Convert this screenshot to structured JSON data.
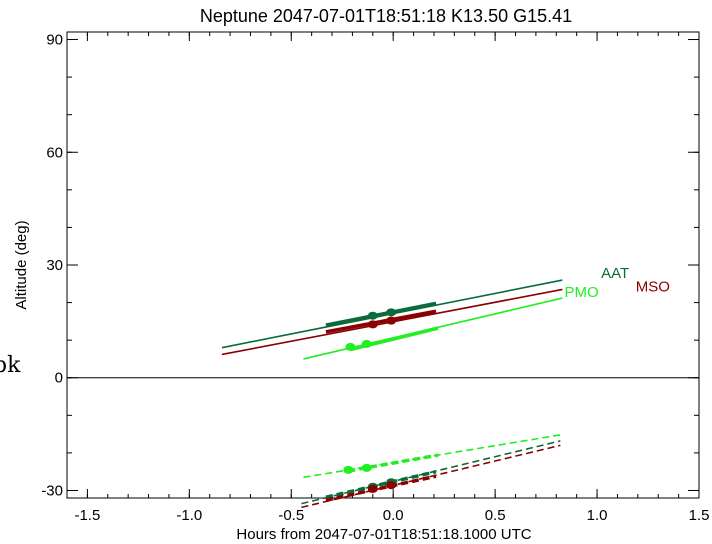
{
  "chart_data": {
    "type": "line",
    "title": "Neptune 2047-07-01T18:51:18  K13.50  G15.41",
    "xlabel": "Hours from 2047-07-01T18:51:18.1000 UTC",
    "ylabel": "Altitude (deg)",
    "xlim": [
      -1.6,
      1.5
    ],
    "ylim": [
      -32,
      92
    ],
    "xticks": [
      -1.5,
      -1.0,
      -0.5,
      0.0,
      0.5,
      1.0,
      1.5
    ],
    "xtick_labels": [
      "-1.5",
      "-1.0",
      "-0.5",
      "0.0",
      "0.5",
      "1.0",
      "1.5"
    ],
    "yticks": [
      -30,
      0,
      30,
      60,
      90
    ],
    "ytick_labels": [
      "-30",
      "0",
      "30",
      "60",
      "90"
    ],
    "zero_line": true,
    "grid": false,
    "edge_text": "pk",
    "series": [
      {
        "name": "AAT",
        "color": "#0b6b3a",
        "label_at": [
          1.02,
          26.5
        ],
        "altitude": {
          "x": [
            -0.84,
            0.83
          ],
          "y": [
            8.0,
            26.0
          ]
        },
        "thick": {
          "x": [
            -0.33,
            0.21
          ],
          "y": [
            14.0,
            19.8
          ]
        },
        "points": {
          "x": [
            -0.1,
            -0.01
          ],
          "y": [
            16.5,
            17.4
          ]
        },
        "below": {
          "x": [
            -0.45,
            0.82
          ],
          "y": [
            -33.5,
            -16.8
          ]
        },
        "below_thick": {
          "x": [
            -0.33,
            0.21
          ],
          "y": [
            -31.8,
            -25.0
          ]
        },
        "below_points": {
          "x": [
            -0.1,
            -0.01
          ],
          "y": [
            -29.0,
            -27.8
          ]
        }
      },
      {
        "name": "MSO",
        "color": "#8b0000",
        "label_at": [
          1.19,
          23.0
        ],
        "altitude": {
          "x": [
            -0.84,
            0.83
          ],
          "y": [
            6.2,
            23.5
          ]
        },
        "thick": {
          "x": [
            -0.33,
            0.21
          ],
          "y": [
            12.2,
            17.7
          ]
        },
        "points": {
          "x": [
            -0.1,
            -0.01
          ],
          "y": [
            14.2,
            15.2
          ]
        },
        "below": {
          "x": [
            -0.45,
            0.82
          ],
          "y": [
            -34.5,
            -18.0
          ]
        },
        "below_thick": {
          "x": [
            -0.33,
            0.21
          ],
          "y": [
            -32.6,
            -26.2
          ]
        },
        "below_points": {
          "x": [
            -0.1,
            -0.01
          ],
          "y": [
            -29.6,
            -28.6
          ]
        }
      },
      {
        "name": "PMO",
        "color": "#22ee22",
        "label_at": [
          0.84,
          21.5
        ],
        "altitude": {
          "x": [
            -0.44,
            0.83
          ],
          "y": [
            5.0,
            21.2
          ]
        },
        "thick": {
          "x": [
            -0.21,
            0.22
          ],
          "y": [
            7.5,
            13.2
          ]
        },
        "points": {
          "x": [
            -0.21,
            -0.13
          ],
          "y": [
            8.2,
            9.0
          ]
        },
        "below": {
          "x": [
            -0.44,
            0.82
          ],
          "y": [
            -26.5,
            -15.2
          ]
        },
        "below_thick": {
          "x": [
            -0.22,
            0.22
          ],
          "y": [
            -24.8,
            -20.6
          ]
        },
        "below_points": {
          "x": [
            -0.22,
            -0.13
          ],
          "y": [
            -24.5,
            -24.0
          ]
        }
      }
    ]
  }
}
